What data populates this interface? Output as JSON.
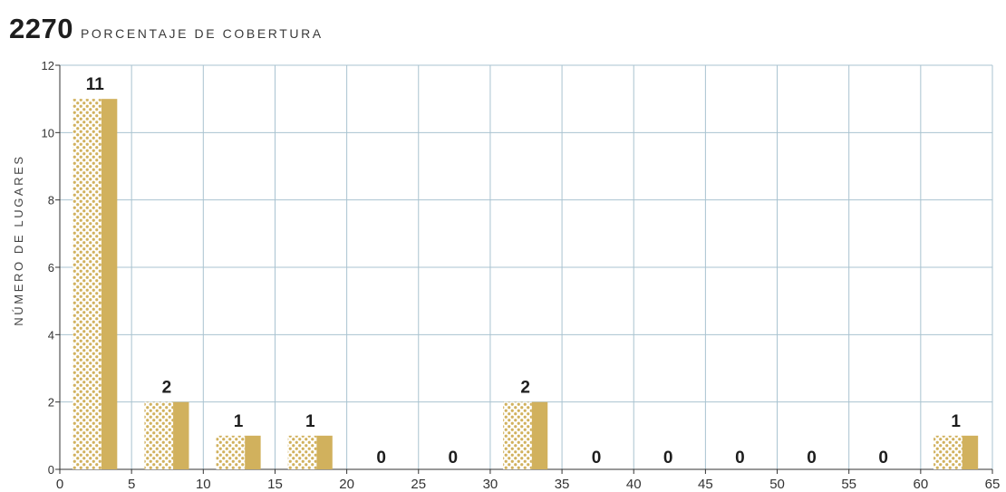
{
  "header": {
    "number": "2270",
    "subtitle": "PORCENTAJE DE COBERTURA"
  },
  "chart_data": {
    "type": "bar",
    "title": "2270",
    "subtitle": "PORCENTAJE DE COBERTURA",
    "xlabel": "",
    "ylabel": "NÚMERO DE LUGARES",
    "xlim": [
      0,
      65
    ],
    "ylim": [
      0,
      12
    ],
    "x_ticks": [
      0,
      5,
      10,
      15,
      20,
      25,
      30,
      35,
      40,
      45,
      50,
      55,
      60,
      65
    ],
    "y_ticks": [
      0,
      2,
      4,
      6,
      8,
      10,
      12
    ],
    "grid": true,
    "bins": [
      {
        "start": 0,
        "end": 5,
        "value": 11
      },
      {
        "start": 5,
        "end": 10,
        "value": 2
      },
      {
        "start": 10,
        "end": 15,
        "value": 1
      },
      {
        "start": 15,
        "end": 20,
        "value": 1
      },
      {
        "start": 20,
        "end": 25,
        "value": 0
      },
      {
        "start": 25,
        "end": 30,
        "value": 0
      },
      {
        "start": 30,
        "end": 35,
        "value": 2
      },
      {
        "start": 35,
        "end": 40,
        "value": 0
      },
      {
        "start": 40,
        "end": 45,
        "value": 0
      },
      {
        "start": 45,
        "end": 50,
        "value": 0
      },
      {
        "start": 50,
        "end": 55,
        "value": 0
      },
      {
        "start": 55,
        "end": 60,
        "value": 0
      },
      {
        "start": 60,
        "end": 65,
        "value": 1
      }
    ],
    "colors": {
      "bar": "#d1b15d",
      "dots": "#d1b15d",
      "grid": "#a9c3d0",
      "axis": "#333333",
      "label": "#1e1e1e"
    }
  }
}
